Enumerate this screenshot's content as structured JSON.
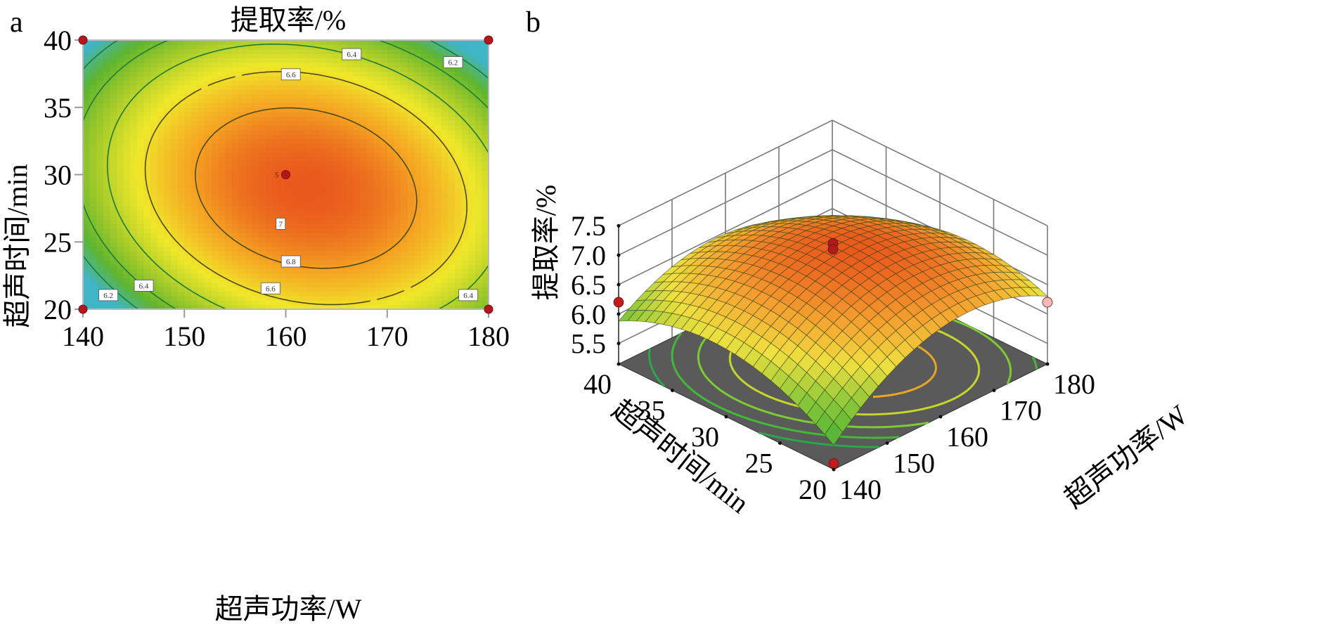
{
  "figure": {
    "panels": [
      "a",
      "b"
    ]
  },
  "chart_data": [
    {
      "id": "a",
      "type": "heatmap",
      "subtype": "contour",
      "panel_label": "a",
      "title": "提取率/%",
      "xlabel": "超声功率/W",
      "ylabel": "超声时间/min",
      "xlim": [
        140,
        180
      ],
      "ylim": [
        20,
        40
      ],
      "xticks": [
        140,
        150,
        160,
        170,
        180
      ],
      "yticks": [
        20,
        25,
        30,
        35,
        40
      ],
      "colormap": [
        "#3fb5c8",
        "#5fb52e",
        "#a8cc2a",
        "#f0e82a",
        "#f5a623",
        "#e8501c"
      ],
      "z_range": [
        6.1,
        7.2
      ],
      "contour_levels": [
        6.2,
        6.4,
        6.6,
        6.8,
        7.0
      ],
      "contour_labels": [
        {
          "text": "6.4",
          "x": 166.5,
          "y": 38.9
        },
        {
          "text": "6.2",
          "x": 176.5,
          "y": 38.3
        },
        {
          "text": "6.6",
          "x": 160.5,
          "y": 37.4
        },
        {
          "text": "7",
          "x": 159.5,
          "y": 26.3
        },
        {
          "text": "6.8",
          "x": 160.5,
          "y": 23.5
        },
        {
          "text": "6.6",
          "x": 158.5,
          "y": 21.5
        },
        {
          "text": "6.4",
          "x": 146.0,
          "y": 21.7
        },
        {
          "text": "6.2",
          "x": 142.5,
          "y": 21.0
        },
        {
          "text": "6.4",
          "x": 178.0,
          "y": 21.0
        }
      ],
      "design_points": [
        {
          "x": 140,
          "y": 40
        },
        {
          "x": 180,
          "y": 40
        },
        {
          "x": 140,
          "y": 20
        },
        {
          "x": 180,
          "y": 20
        },
        {
          "x": 160,
          "y": 30,
          "label": "5"
        }
      ]
    },
    {
      "id": "b",
      "type": "surface",
      "panel_label": "b",
      "zlabel": "提取率/%",
      "xlabel": "超声功率/W",
      "ylabel": "超声时间/min",
      "xlim": [
        140,
        180
      ],
      "ylim": [
        20,
        40
      ],
      "zlim": [
        5.5,
        7.5
      ],
      "xticks": [
        140,
        150,
        160,
        170,
        180
      ],
      "yticks": [
        20,
        25,
        30,
        35,
        40
      ],
      "zticks": [
        "5.5",
        "6.0",
        "6.5",
        "7.0",
        "7.5"
      ],
      "model": {
        "optimum_x": 162,
        "optimum_y": 29,
        "z_max": 7.15,
        "z_corner_low": 5.25
      },
      "design_points": [
        {
          "x": 160,
          "y": 30,
          "z": 7.2,
          "color": "#b01c1c"
        },
        {
          "x": 160,
          "y": 30,
          "z": 7.1,
          "color": "#b01c1c"
        },
        {
          "x": 140,
          "y": 40,
          "z": 6.2,
          "color": "#c01c1c"
        },
        {
          "x": 180,
          "y": 20,
          "z": 6.2,
          "color": "#f4b8b8"
        },
        {
          "x": 140,
          "y": 20,
          "z": 5.25,
          "color": "#c01c1c"
        }
      ],
      "floor_color": "#5a5a5a",
      "floor_contours": [
        {
          "level": 7.0,
          "color": "#e8a821"
        },
        {
          "level": 6.8,
          "color": "#c8d62a"
        },
        {
          "level": 6.6,
          "color": "#7ccc32"
        },
        {
          "level": 6.4,
          "color": "#44b838"
        },
        {
          "level": 6.2,
          "color": "#2aa84a"
        }
      ]
    }
  ]
}
